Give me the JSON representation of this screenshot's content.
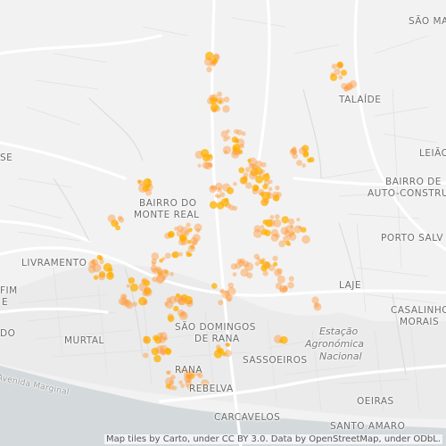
{
  "attribution": "Map tiles by Carto, under CC BY 3.0. Data by OpenStreetMap, under ODbL.",
  "labels": {
    "sao_ma": "SÃO MA",
    "talaide": "TALAÍDE",
    "leiao": "LEIÃO",
    "bairro_auto_1": "BAIRRO DE",
    "bairro_auto_2": "AUTO-CONSTRUÇÃO",
    "monte_real_1": "BAIRRO DO",
    "monte_real_2": "MONTE REAL",
    "porto_salvo": "PORTO SALV",
    "livramento": "LIVRAMENTO",
    "laje": "LAJE",
    "casalinho_1": "CASALINHO",
    "casalinho_2": "MORAIS",
    "fim": "FIM",
    "e": "E",
    "se": "SE",
    "do": "DO",
    "sao_domingos_1": "SÃO DOMINGOS",
    "sao_domingos_2": "DE RANA",
    "estacao_1": "Estação",
    "estacao_2": "Agronómica",
    "estacao_3": "Nacional",
    "murtal": "MURTAL",
    "sassoeiros": "SASSOEIROS",
    "rana": "RANA",
    "rebelva": "REBELVA",
    "oeiras": "OEIRAS",
    "carcavelos": "CARCAVELOS",
    "santo_amaro": "SANTO AMARO",
    "avenida_marginal": "Avenida Marginal"
  },
  "colors": {
    "land": "#f2f2f2",
    "water": "#d4dadc",
    "road": "#ffffff",
    "minor_road": "#e2e2e2",
    "hotspot": "#ff9a3c",
    "hotspot_core": "#ffb000"
  }
}
